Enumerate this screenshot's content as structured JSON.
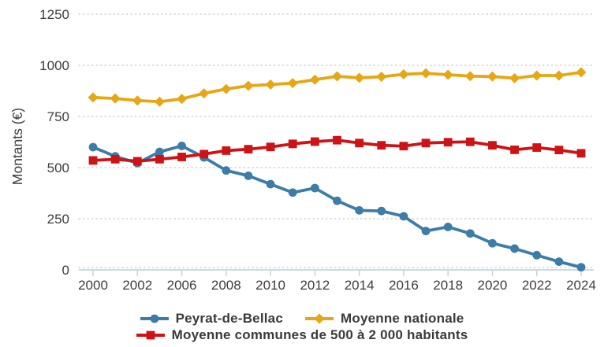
{
  "axes": {
    "y_label": "Montants (€)",
    "y_ticks": [
      "0",
      "250",
      "500",
      "750",
      "1000",
      "1250"
    ],
    "x_tick_labels": [
      "2000",
      "2002",
      "2006",
      "2008",
      "2010",
      "2012",
      "2014",
      "2016",
      "2018",
      "2020",
      "2022",
      "2024"
    ]
  },
  "colors": {
    "blue_series": "#3d7ca8",
    "yellow_series": "#e7a613",
    "red_series": "#cd1316",
    "text": "#3d3d3d",
    "gridline": "#c9c9c9",
    "axis_line": "#c5d4e0"
  },
  "chart_data": {
    "type": "line",
    "title": "",
    "xlabel": "",
    "ylabel": "Montants (€)",
    "ylim": [
      0,
      1250
    ],
    "y_tick_step": 250,
    "grid": "dotted horizontal gridlines",
    "legend_position": "bottom",
    "x_axis_note_visible_labels": [
      "2000",
      "2002",
      "2006",
      "2008",
      "2010",
      "2012",
      "2014",
      "2016",
      "2018",
      "2020",
      "2022",
      "2024"
    ],
    "categories": [
      "2000",
      "2001",
      "2002",
      "2003",
      "2006",
      "2007",
      "2008",
      "2009",
      "2010",
      "2011",
      "2012",
      "2013",
      "2014",
      "2015",
      "2016",
      "2017",
      "2018",
      "2019",
      "2020",
      "2021",
      "2022",
      "2023",
      "2024"
    ],
    "series": [
      {
        "name": "Peyrat-de-Bellac",
        "color": "#3d7ca8",
        "marker": "circle",
        "values": [
          600,
          555,
          522,
          577,
          606,
          550,
          486,
          460,
          419,
          378,
          400,
          338,
          291,
          288,
          262,
          190,
          210,
          178,
          130,
          104,
          72,
          40,
          13
        ]
      },
      {
        "name": "Moyenne nationale",
        "color": "#e7a613",
        "marker": "diamond",
        "values": [
          843,
          838,
          828,
          822,
          836,
          863,
          884,
          900,
          906,
          913,
          930,
          946,
          939,
          944,
          956,
          961,
          954,
          947,
          945,
          937,
          950,
          950,
          966
        ]
      },
      {
        "name": "Moyenne communes de 500 à 2 000 habitants",
        "color": "#cd1316",
        "marker": "square",
        "values": [
          535,
          541,
          531,
          541,
          552,
          566,
          583,
          590,
          601,
          616,
          627,
          634,
          620,
          609,
          605,
          620,
          624,
          626,
          609,
          587,
          598,
          586,
          570
        ]
      }
    ]
  },
  "legend": {
    "entries": [
      "Peyrat-de-Bellac",
      "Moyenne nationale",
      "Moyenne communes de 500 à 2 000 habitants"
    ]
  }
}
